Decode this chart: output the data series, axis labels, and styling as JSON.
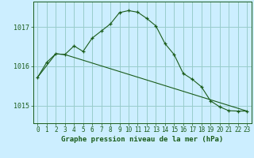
{
  "title": "Graphe pression niveau de la mer (hPa)",
  "background_color": "#cceeff",
  "grid_color": "#99cccc",
  "line_color": "#1a5c1a",
  "x_labels": [
    "0",
    "1",
    "2",
    "3",
    "4",
    "5",
    "6",
    "7",
    "8",
    "9",
    "10",
    "11",
    "12",
    "13",
    "14",
    "15",
    "16",
    "17",
    "18",
    "19",
    "20",
    "21",
    "22",
    "23"
  ],
  "y_ticks": [
    1015,
    1016,
    1017
  ],
  "ylim": [
    1014.55,
    1017.65
  ],
  "xlim": [
    -0.5,
    23.5
  ],
  "series1_x": [
    0,
    1,
    2,
    3,
    4,
    5,
    6,
    7,
    8,
    9,
    10,
    11,
    12,
    13,
    14,
    15,
    16,
    17,
    18,
    19,
    20,
    21,
    22,
    23
  ],
  "series1_y": [
    1015.72,
    1016.1,
    1016.32,
    1016.3,
    1016.52,
    1016.38,
    1016.72,
    1016.9,
    1017.08,
    1017.37,
    1017.42,
    1017.38,
    1017.22,
    1017.03,
    1016.58,
    1016.3,
    1015.82,
    1015.67,
    1015.48,
    1015.12,
    1014.97,
    1014.87,
    1014.86,
    1014.86
  ],
  "series2_x": [
    0,
    2,
    3,
    23
  ],
  "series2_y": [
    1015.72,
    1016.32,
    1016.3,
    1014.86
  ],
  "title_fontsize": 6.5,
  "tick_fontsize": 5.5,
  "ytick_fontsize": 6
}
